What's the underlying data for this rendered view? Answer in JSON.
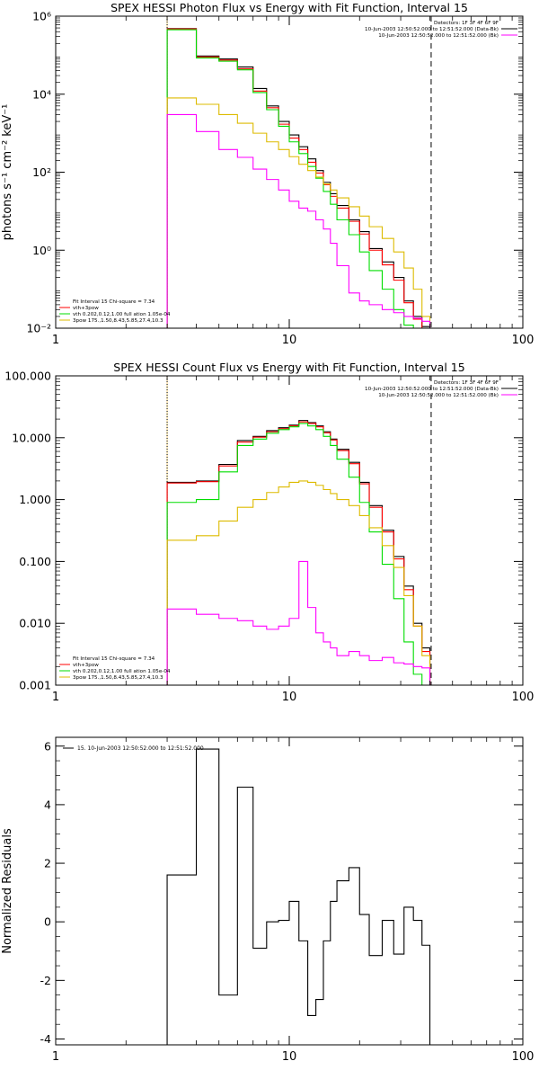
{
  "colors": {
    "data": "#000000",
    "total_model": "#ff0000",
    "thermal": "#00dd00",
    "power_law": "#ddbb00",
    "background": "#ff00ff",
    "fit_range_marker": "#000000",
    "energy_start_marker": "#ffaa00"
  },
  "chart_data": [
    {
      "id": "photon",
      "type": "line",
      "title": "SPEX HESSI Photon Flux vs Energy with Fit Function, Interval 15",
      "xlabel": "",
      "ylabel": "photons s⁻¹ cm⁻² keV⁻¹",
      "xscale": "log",
      "yscale": "log",
      "xlim": [
        1,
        100
      ],
      "ylim": [
        0.01,
        1000000
      ],
      "xticks": [
        {
          "v": 1,
          "label": "1"
        },
        {
          "v": 10,
          "label": "10"
        },
        {
          "v": 100,
          "label": "100"
        }
      ],
      "yticks": [
        {
          "v": 0.01,
          "label": "10⁻²"
        },
        {
          "v": 1,
          "label": "10⁰"
        },
        {
          "v": 100,
          "label": "10²"
        },
        {
          "v": 10000,
          "label": "10⁴"
        },
        {
          "v": 1000000,
          "label": "10⁶"
        }
      ],
      "vlines": [
        {
          "x": 3,
          "style": "dotted",
          "color": "#000000"
        },
        {
          "x": 3,
          "style": "dotted",
          "color": "#ffaa00"
        },
        {
          "x": 40.5,
          "style": "dashed",
          "color": "#000000"
        }
      ],
      "edges": [
        3,
        4,
        5,
        6,
        7,
        8,
        9,
        10,
        11,
        12,
        13,
        14,
        15,
        16,
        18,
        20,
        22,
        25,
        28,
        31,
        34,
        37,
        40
      ],
      "series": [
        {
          "color": "#000000",
          "values": [
            480000,
            95000,
            80000,
            50000,
            14000,
            5000,
            2000,
            900,
            450,
            220,
            110,
            55,
            28,
            14,
            6,
            3,
            1.1,
            0.5,
            0.2,
            0.05,
            0.02,
            0.011
          ]
        },
        {
          "color": "#ff0000",
          "values": [
            470000,
            90000,
            75000,
            45000,
            12000,
            4500,
            1700,
            750,
            380,
            180,
            95,
            48,
            24,
            12,
            5.5,
            2.6,
            1.0,
            0.42,
            0.17,
            0.045,
            0.017,
            0.01
          ]
        },
        {
          "color": "#00dd00",
          "values": [
            450000,
            85000,
            70000,
            42000,
            11000,
            4000,
            1500,
            600,
            300,
            140,
            70,
            32,
            15,
            6,
            2.5,
            0.9,
            0.3,
            0.1,
            0.03,
            0.012,
            0.0095,
            0.009
          ]
        },
        {
          "color": "#ddbb00",
          "values": [
            8000,
            5500,
            3000,
            1800,
            1000,
            600,
            380,
            250,
            160,
            110,
            75,
            50,
            35,
            22,
            13,
            7.5,
            4,
            2,
            0.9,
            0.35,
            0.1,
            0.02
          ]
        },
        {
          "color": "#ff00ff",
          "values": [
            3000,
            1100,
            380,
            240,
            120,
            65,
            35,
            18,
            12,
            10,
            6,
            3.5,
            1.5,
            0.4,
            0.08,
            0.05,
            0.04,
            0.03,
            0.025,
            0.02,
            0.018,
            0.015
          ]
        }
      ],
      "legend_tr": [
        {
          "text": "Detectors: 1F 3F 4F 6F 9F",
          "color": null
        },
        {
          "text": "10-Jun-2003 12:50:52.000 to 12:51:52.000 (Data-Bk)",
          "color": "#000000"
        },
        {
          "text": "10-Jun-2003 12:50:52.000 to 12:51:52.000 (Bk)",
          "color": "#ff00ff"
        }
      ],
      "legend_bl": [
        {
          "text": "Fit Interval 15   Chi-square = 7.34",
          "color": null
        },
        {
          "text": "vth+3pow",
          "color": "#ff0000"
        },
        {
          "text": "vth 0.202,0.12,1.00  full ation 1.05e-04",
          "color": "#00dd00"
        },
        {
          "text": "3pow 175.,1.50,8.43,5.85,27.4,10.3",
          "color": "#ddbb00"
        }
      ]
    },
    {
      "id": "count",
      "type": "line",
      "title": "SPEX HESSI Count Flux vs Energy with Fit Function, Interval 15",
      "xlabel": "",
      "ylabel": "",
      "xscale": "log",
      "yscale": "log",
      "xlim": [
        1,
        100
      ],
      "ylim": [
        0.001,
        100
      ],
      "xticks": [
        {
          "v": 1,
          "label": "1"
        },
        {
          "v": 10,
          "label": "10"
        },
        {
          "v": 100,
          "label": "100"
        }
      ],
      "yticks": [
        {
          "v": 0.001,
          "label": "0.001"
        },
        {
          "v": 0.01,
          "label": "0.010"
        },
        {
          "v": 0.1,
          "label": "0.100"
        },
        {
          "v": 1,
          "label": "1.000"
        },
        {
          "v": 10,
          "label": "10.000"
        },
        {
          "v": 100,
          "label": "100.000"
        }
      ],
      "vlines": [
        {
          "x": 3,
          "style": "dotted",
          "color": "#000000"
        },
        {
          "x": 3,
          "style": "dotted",
          "color": "#ffaa00"
        },
        {
          "x": 40.5,
          "style": "dashed",
          "color": "#000000"
        }
      ],
      "edges": [
        3,
        4,
        5,
        6,
        7,
        8,
        9,
        10,
        11,
        12,
        13,
        14,
        15,
        16,
        18,
        20,
        22,
        25,
        28,
        31,
        34,
        37,
        40
      ],
      "series": [
        {
          "color": "#000000",
          "values": [
            1.9,
            2.0,
            3.7,
            9.0,
            10.5,
            13.0,
            14.5,
            16.0,
            19.0,
            17.5,
            15.5,
            12.5,
            9.5,
            6.5,
            4.0,
            1.9,
            0.8,
            0.32,
            0.12,
            0.04,
            0.01,
            0.004
          ]
        },
        {
          "color": "#ff0000",
          "values": [
            1.85,
            1.95,
            3.5,
            8.5,
            10.2,
            12.5,
            14.0,
            15.5,
            18.0,
            17.0,
            15.0,
            12.0,
            9.2,
            6.2,
            3.8,
            1.8,
            0.75,
            0.3,
            0.11,
            0.035,
            0.009,
            0.0035
          ]
        },
        {
          "color": "#00dd00",
          "values": [
            0.9,
            1.0,
            2.8,
            7.5,
            9.5,
            11.8,
            13.5,
            15.0,
            17.0,
            15.5,
            13.5,
            10.5,
            7.5,
            4.5,
            2.3,
            0.9,
            0.3,
            0.09,
            0.025,
            0.005,
            0.0015,
            0.0005
          ]
        },
        {
          "color": "#ddbb00",
          "values": [
            0.22,
            0.26,
            0.45,
            0.75,
            1.0,
            1.3,
            1.6,
            1.9,
            2.0,
            1.9,
            1.7,
            1.45,
            1.25,
            1.0,
            0.8,
            0.55,
            0.35,
            0.18,
            0.08,
            0.028,
            0.009,
            0.003
          ]
        },
        {
          "color": "#ff00ff",
          "values": [
            0.017,
            0.014,
            0.012,
            0.011,
            0.009,
            0.008,
            0.009,
            0.012,
            0.1,
            0.018,
            0.007,
            0.005,
            0.004,
            0.003,
            0.0035,
            0.003,
            0.0025,
            0.0028,
            0.0023,
            0.0022,
            0.002,
            0.0019
          ]
        }
      ],
      "legend_tr": [
        {
          "text": "Detectors: 1F 3F 4F 6F 9F",
          "color": null
        },
        {
          "text": "10-Jun-2003 12:50:52.000 to 12:51:52.000 (Data-Bk)",
          "color": "#000000"
        },
        {
          "text": "10-Jun-2003 12:50:52.000 to 12:51:52.000 (Bk)",
          "color": "#ff00ff"
        }
      ],
      "legend_bl": [
        {
          "text": "Fit Interval 15   Chi-square = 7.34",
          "color": null
        },
        {
          "text": "vth+3pow",
          "color": "#ff0000"
        },
        {
          "text": "vth 0.202,0.12,1.00  full ation 1.05e-04",
          "color": "#00dd00"
        },
        {
          "text": "3pow 175.,1.50,8.43,5.85,27.4,10.3",
          "color": "#ddbb00"
        }
      ]
    },
    {
      "id": "resid",
      "type": "line",
      "title": "",
      "xlabel": "",
      "ylabel": "Normalized Residuals",
      "xscale": "log",
      "yscale": "linear",
      "xlim": [
        1,
        100
      ],
      "ylim": [
        -4.2,
        6.3
      ],
      "xticks": [
        {
          "v": 1,
          "label": "1"
        },
        {
          "v": 10,
          "label": "10"
        },
        {
          "v": 100,
          "label": "100"
        }
      ],
      "yticks": [
        {
          "v": -4,
          "label": "-4"
        },
        {
          "v": -2,
          "label": "-2"
        },
        {
          "v": 0,
          "label": "0"
        },
        {
          "v": 2,
          "label": "2"
        },
        {
          "v": 4,
          "label": "4"
        },
        {
          "v": 6,
          "label": "6"
        }
      ],
      "vlines": [],
      "edges": [
        3,
        4,
        5,
        6,
        7,
        8,
        9,
        10,
        11,
        12,
        13,
        14,
        15,
        16,
        18,
        20,
        22,
        25,
        28,
        31,
        34,
        37,
        40
      ],
      "series": [
        {
          "color": "#000000",
          "values": [
            1.6,
            5.9,
            -2.5,
            4.6,
            -0.9,
            0,
            0.05,
            0.7,
            -0.65,
            -3.2,
            -2.65,
            -0.65,
            0.7,
            1.4,
            1.85,
            0.25,
            -1.15,
            0.05,
            -1.1,
            0.5,
            0.05,
            -0.8
          ],
          "drop_to_min": true
        }
      ],
      "legend_tr": [],
      "legend_bl": [],
      "legend_tl": [
        {
          "text": "15. 10-Jun-2003 12:50:52.000 to 12:51:52.000",
          "color": "#000000"
        }
      ]
    }
  ]
}
